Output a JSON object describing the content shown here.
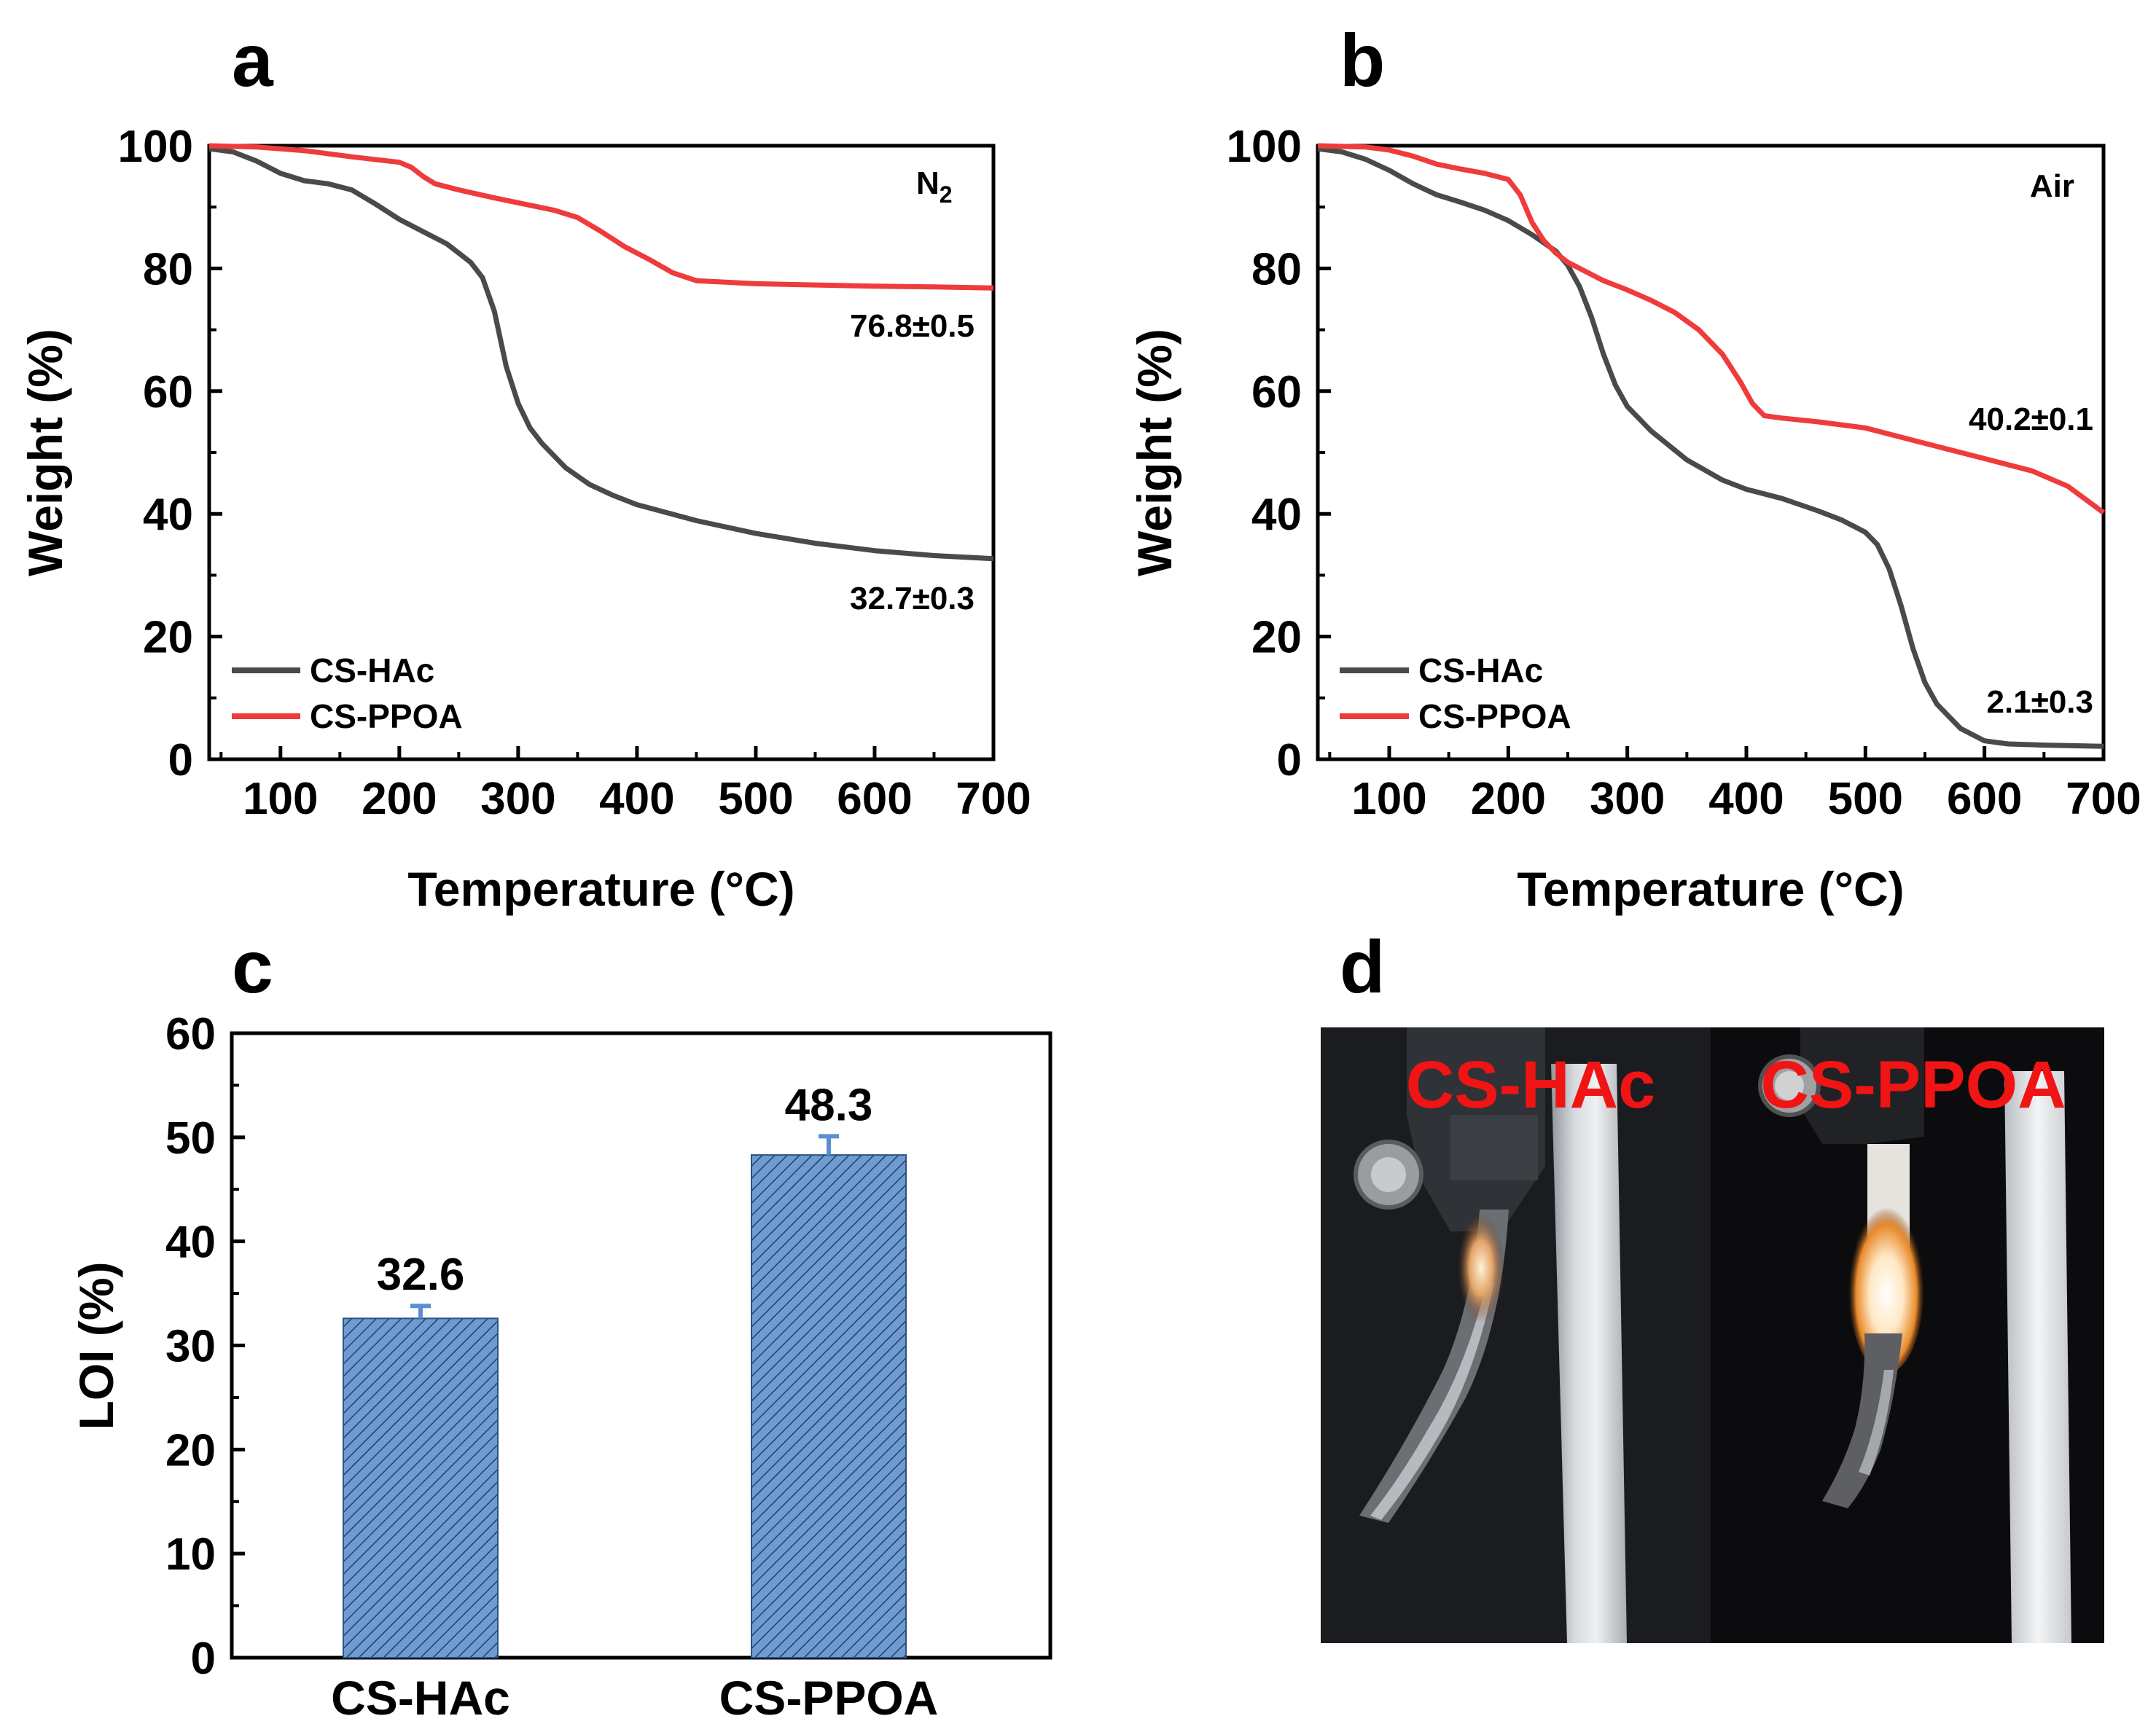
{
  "figure": {
    "panels": [
      "a",
      "b",
      "c",
      "d"
    ]
  },
  "colors": {
    "cs_hac_line": "#4a4a4a",
    "cs_ppoa_line": "#ef3b3b",
    "bar_fill": "#6f9bd0",
    "bar_hatch": "#1f3f70",
    "error_bar": "#5b8fd0",
    "photo_label": "#f01414"
  },
  "chart_data": [
    {
      "panel": "a",
      "type": "line",
      "xlabel": "Temperature (°C)",
      "ylabel": "Weight (%)",
      "xlim": [
        40,
        700
      ],
      "ylim": [
        0,
        100
      ],
      "xticks": [
        100,
        200,
        300,
        400,
        500,
        600,
        700
      ],
      "yticks": [
        0,
        20,
        40,
        60,
        80,
        100
      ],
      "atmosphere": {
        "base": "N",
        "sub": "2"
      },
      "legend_position": "bottom-left",
      "series": [
        {
          "name": "CS-HAc",
          "color": "#4a4a4a",
          "x": [
            40,
            60,
            80,
            100,
            120,
            140,
            160,
            180,
            200,
            220,
            240,
            260,
            270,
            280,
            290,
            300,
            310,
            320,
            340,
            360,
            380,
            400,
            450,
            500,
            550,
            600,
            650,
            700
          ],
          "y": [
            99.5,
            99,
            97.5,
            95.5,
            94.3,
            93.8,
            92.8,
            90.5,
            88,
            86,
            84,
            81,
            78.5,
            73,
            64,
            58,
            54,
            51.5,
            47.5,
            44.8,
            43,
            41.5,
            38.9,
            36.8,
            35.2,
            34,
            33.2,
            32.7
          ],
          "final_label": "32.7±0.3"
        },
        {
          "name": "CS-PPOA",
          "color": "#ef3b3b",
          "x": [
            40,
            80,
            120,
            160,
            200,
            210,
            220,
            230,
            250,
            280,
            300,
            330,
            350,
            370,
            390,
            410,
            430,
            450,
            470,
            500,
            550,
            600,
            650,
            700
          ],
          "y": [
            100,
            99.8,
            99.2,
            98.2,
            97.3,
            96.5,
            95,
            93.8,
            92.8,
            91.5,
            90.7,
            89.5,
            88.3,
            86,
            83.5,
            81.5,
            79.3,
            78,
            77.8,
            77.5,
            77.3,
            77.1,
            77,
            76.8
          ],
          "final_label": "76.8±0.5"
        }
      ]
    },
    {
      "panel": "b",
      "type": "line",
      "xlabel": "Temperature (°C)",
      "ylabel": "Weight (%)",
      "xlim": [
        40,
        700
      ],
      "ylim": [
        0,
        100
      ],
      "xticks": [
        100,
        200,
        300,
        400,
        500,
        600,
        700
      ],
      "yticks": [
        0,
        20,
        40,
        60,
        80,
        100
      ],
      "atmosphere": {
        "base": "Air",
        "sub": ""
      },
      "legend_position": "bottom-left",
      "series": [
        {
          "name": "CS-HAc",
          "color": "#4a4a4a",
          "x": [
            40,
            60,
            80,
            100,
            120,
            140,
            160,
            180,
            200,
            220,
            240,
            250,
            260,
            270,
            280,
            290,
            300,
            320,
            350,
            380,
            400,
            430,
            460,
            480,
            500,
            510,
            520,
            530,
            540,
            550,
            560,
            580,
            600,
            620,
            650,
            700
          ],
          "y": [
            99.5,
            99,
            97.8,
            96,
            93.8,
            92,
            90.8,
            89.5,
            87.8,
            85.5,
            82.8,
            80.5,
            77,
            72,
            66,
            61,
            57.5,
            53.5,
            48.8,
            45.5,
            44,
            42.5,
            40.5,
            39,
            37,
            35,
            31,
            25,
            18,
            12.5,
            9,
            5,
            3,
            2.5,
            2.3,
            2.1
          ],
          "final_label": "2.1±0.3"
        },
        {
          "name": "CS-PPOA",
          "color": "#ef3b3b",
          "x": [
            40,
            80,
            100,
            120,
            140,
            160,
            180,
            200,
            210,
            220,
            230,
            240,
            250,
            260,
            280,
            300,
            320,
            340,
            360,
            380,
            395,
            405,
            415,
            430,
            460,
            500,
            530,
            560,
            600,
            640,
            670,
            700
          ],
          "y": [
            100,
            99.8,
            99.3,
            98.3,
            97,
            96.2,
            95.5,
            94.5,
            92,
            87.5,
            84.5,
            82.5,
            81,
            80,
            78,
            76.5,
            74.8,
            72.8,
            70,
            66,
            61.5,
            58,
            56,
            55.6,
            55,
            54,
            52.5,
            51,
            49,
            47,
            44.5,
            40.2
          ],
          "final_label": "40.2±0.1"
        }
      ]
    },
    {
      "panel": "c",
      "type": "bar",
      "ylabel": "LOI (%)",
      "ylim": [
        0,
        60
      ],
      "yticks": [
        0,
        10,
        20,
        30,
        40,
        50,
        60
      ],
      "categories": [
        "CS-HAc",
        "CS-PPOA"
      ],
      "values": [
        32.6,
        48.3
      ],
      "errors": [
        1.2,
        1.8
      ],
      "value_labels": [
        "32.6",
        "48.3"
      ]
    }
  ],
  "photo": {
    "panel": "d",
    "labels": [
      "CS-HAc",
      "CS-PPOA"
    ]
  }
}
